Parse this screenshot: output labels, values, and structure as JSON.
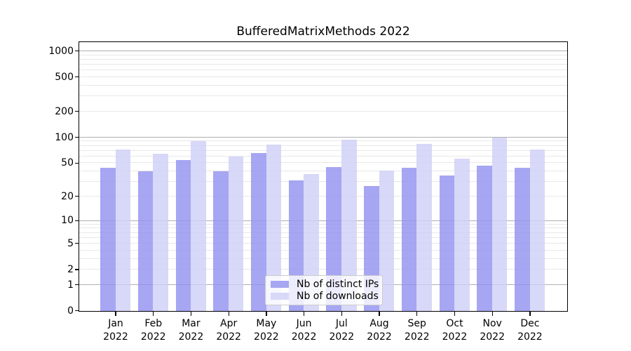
{
  "title": "BufferedMatrixMethods 2022",
  "chart_data": {
    "type": "bar",
    "title": "BufferedMatrixMethods 2022",
    "categories": [
      "Jan 2022",
      "Feb 2022",
      "Mar 2022",
      "Apr 2022",
      "May 2022",
      "Jun 2022",
      "Jul 2022",
      "Aug 2022",
      "Sep 2022",
      "Oct 2022",
      "Nov 2022",
      "Dec 2022"
    ],
    "series": [
      {
        "name": "Nb of distinct IPs",
        "color": "#9090f0",
        "alpha": 0.8,
        "legend_color": "#a6a6f3",
        "values": [
          44,
          40,
          54,
          40,
          66,
          31,
          45,
          27,
          44,
          36,
          47,
          44
        ]
      },
      {
        "name": "Nb of downloads",
        "color": "#cecef6",
        "alpha": 0.8,
        "legend_color": "#d8d8f8",
        "values": [
          72,
          65,
          91,
          60,
          82,
          37,
          94,
          41,
          84,
          57,
          100,
          72
        ]
      }
    ],
    "y_ticks": [
      0,
      1,
      2,
      5,
      10,
      20,
      50,
      100,
      200,
      500,
      1000
    ],
    "y_scale": "log10(1+y)",
    "ylim": [
      0,
      1280
    ],
    "xlabel": "",
    "ylabel": "",
    "grid": true,
    "grid_major_color": "#b0b0b0",
    "grid_minor_color": "#e8e8e8",
    "legend_position": "inside-bottom-center"
  }
}
